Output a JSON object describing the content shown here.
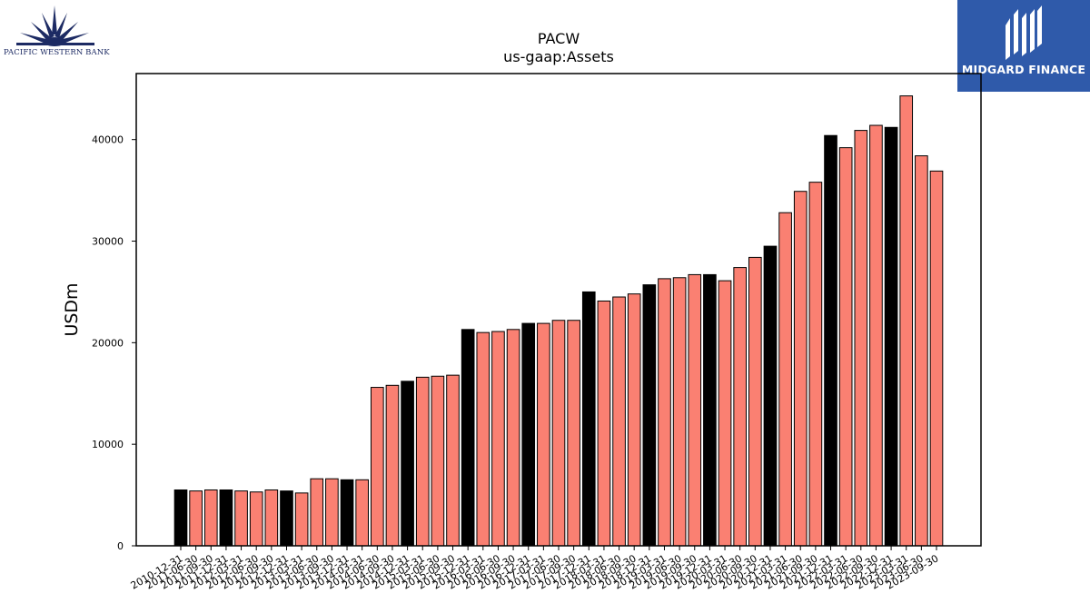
{
  "logos": {
    "left": {
      "name": "PACIFIC WESTERN BANK",
      "color": "#1c2a63"
    },
    "right": {
      "name": "MIDGARD FINANCE",
      "background": "#2f5aaa"
    }
  },
  "chart_data": {
    "type": "bar",
    "title": "PACW",
    "subtitle": "us-gaap:Assets",
    "ylabel": "USDm",
    "xlabel": "",
    "ylim": [
      0,
      46500
    ],
    "yticks": [
      0,
      10000,
      20000,
      30000,
      40000
    ],
    "grid": false,
    "colors": {
      "fiscal_year_end": "#000000",
      "quarter": "#fa8072"
    },
    "categories": [
      "2010-12-31",
      "2011-06-30",
      "2011-09-30",
      "2011-12-31",
      "2012-03-31",
      "2012-06-30",
      "2012-09-30",
      "2012-12-31",
      "2013-03-31",
      "2013-06-30",
      "2013-09-30",
      "2013-12-31",
      "2014-03-31",
      "2014-06-30",
      "2014-09-30",
      "2014-12-31",
      "2015-03-31",
      "2015-06-30",
      "2015-09-30",
      "2015-12-31",
      "2016-03-31",
      "2016-06-30",
      "2016-09-30",
      "2016-12-31",
      "2017-03-31",
      "2017-06-30",
      "2017-09-30",
      "2017-12-31",
      "2018-03-31",
      "2018-06-30",
      "2018-09-30",
      "2018-12-31",
      "2019-03-31",
      "2019-06-30",
      "2019-09-30",
      "2019-12-31",
      "2020-03-31",
      "2020-06-30",
      "2020-09-30",
      "2020-12-31",
      "2021-03-31",
      "2021-06-30",
      "2021-09-30",
      "2021-12-31",
      "2022-03-31",
      "2022-06-30",
      "2022-09-30",
      "2022-12-31",
      "2023-03-31",
      "2023-06-30",
      "2023-09-30"
    ],
    "values": [
      5500,
      5400,
      5500,
      5500,
      5400,
      5300,
      5500,
      5400,
      5200,
      6600,
      6600,
      6500,
      6500,
      15600,
      15800,
      16200,
      16600,
      16700,
      16800,
      21300,
      21000,
      21100,
      21300,
      21900,
      21900,
      22200,
      22200,
      25000,
      24100,
      24500,
      24800,
      25700,
      26300,
      26400,
      26700,
      26700,
      26100,
      27400,
      28400,
      29500,
      32800,
      34900,
      35800,
      40400,
      39200,
      40900,
      41400,
      41200,
      44300,
      38400,
      36900
    ],
    "highlight": [
      true,
      false,
      false,
      true,
      false,
      false,
      false,
      true,
      false,
      false,
      false,
      true,
      false,
      false,
      false,
      true,
      false,
      false,
      false,
      true,
      false,
      false,
      false,
      true,
      false,
      false,
      false,
      true,
      false,
      false,
      false,
      true,
      false,
      false,
      false,
      true,
      false,
      false,
      false,
      true,
      false,
      false,
      false,
      true,
      false,
      false,
      false,
      true,
      false,
      false,
      false
    ]
  }
}
